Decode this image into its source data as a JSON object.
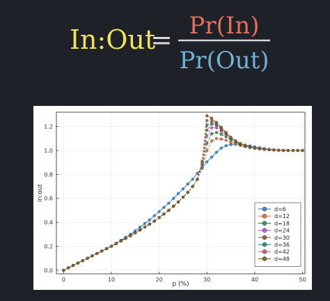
{
  "formula": {
    "lhs": "In:Out",
    "equals": "=",
    "numerator": "Pr(In)",
    "denominator": "Pr(Out)",
    "colors": {
      "lhs": "#f2e25a",
      "numerator": "#e8705a",
      "denominator": "#6fb3d8",
      "rule": "#d8d8d8"
    }
  },
  "chart_data": {
    "type": "line",
    "title": "",
    "xlabel": "p (%)",
    "ylabel": "in:out",
    "xlim": [
      -1.5,
      50.5
    ],
    "ylim": [
      -0.03,
      1.32
    ],
    "xticks": [
      0,
      10,
      20,
      30,
      40,
      50
    ],
    "yticks": [
      0.0,
      0.2,
      0.4,
      0.6,
      0.8,
      1.0,
      1.2
    ],
    "ytick_labels": [
      "0.0",
      "0.2",
      "0.4",
      "0.6",
      "0.8",
      "1.0",
      "1.2"
    ],
    "grid": true,
    "legend_position": "bottom-right",
    "x": [
      0,
      1,
      2,
      3,
      4,
      5,
      6,
      7,
      8,
      9,
      10,
      11,
      12,
      13,
      14,
      15,
      16,
      17,
      18,
      19,
      20,
      21,
      22,
      23,
      24,
      25,
      26,
      27,
      28,
      29,
      30,
      31,
      32,
      33,
      34,
      35,
      36,
      37,
      38,
      39,
      40,
      41,
      42,
      43,
      44,
      45,
      46,
      47,
      48,
      49,
      50
    ],
    "series": [
      {
        "name": "d=6",
        "color": "#3d8fd0",
        "values": [
          0.0,
          0.02,
          0.04,
          0.06,
          0.08,
          0.1,
          0.12,
          0.14,
          0.16,
          0.18,
          0.2,
          0.225,
          0.25,
          0.275,
          0.3,
          0.33,
          0.36,
          0.39,
          0.42,
          0.455,
          0.49,
          0.525,
          0.56,
          0.6,
          0.64,
          0.68,
          0.72,
          0.76,
          0.81,
          0.86,
          0.905,
          0.945,
          0.985,
          1.02,
          1.04,
          1.05,
          1.052,
          1.05,
          1.045,
          1.038,
          1.03,
          1.022,
          1.016,
          1.01,
          1.006,
          1.003,
          1.001,
          1.0,
          1.0,
          1.0,
          1.0
        ]
      },
      {
        "name": "d=12",
        "color": "#e07a3c",
        "values": [
          0.0,
          0.02,
          0.04,
          0.06,
          0.08,
          0.1,
          0.12,
          0.14,
          0.16,
          0.18,
          0.2,
          0.222,
          0.244,
          0.266,
          0.288,
          0.312,
          0.336,
          0.36,
          0.385,
          0.41,
          0.44,
          0.47,
          0.5,
          0.535,
          0.57,
          0.61,
          0.65,
          0.7,
          0.76,
          0.85,
          1.0,
          1.08,
          1.1,
          1.095,
          1.085,
          1.07,
          1.055,
          1.042,
          1.032,
          1.024,
          1.018,
          1.013,
          1.009,
          1.006,
          1.004,
          1.002,
          1.001,
          1.0,
          1.0,
          1.0,
          1.0
        ]
      },
      {
        "name": "d=18",
        "color": "#3a9a4a",
        "values": [
          0.0,
          0.02,
          0.04,
          0.06,
          0.08,
          0.1,
          0.12,
          0.14,
          0.16,
          0.18,
          0.2,
          0.222,
          0.244,
          0.266,
          0.288,
          0.312,
          0.336,
          0.36,
          0.385,
          0.41,
          0.44,
          0.47,
          0.5,
          0.535,
          0.57,
          0.61,
          0.65,
          0.7,
          0.76,
          0.86,
          1.06,
          1.14,
          1.15,
          1.135,
          1.115,
          1.09,
          1.068,
          1.05,
          1.037,
          1.027,
          1.02,
          1.014,
          1.01,
          1.007,
          1.004,
          1.002,
          1.001,
          1.0,
          1.0,
          1.0,
          1.0
        ]
      },
      {
        "name": "d=24",
        "color": "#b06bd6",
        "values": [
          0.0,
          0.02,
          0.04,
          0.06,
          0.08,
          0.1,
          0.12,
          0.14,
          0.16,
          0.18,
          0.2,
          0.222,
          0.244,
          0.266,
          0.288,
          0.312,
          0.336,
          0.36,
          0.385,
          0.41,
          0.44,
          0.47,
          0.5,
          0.535,
          0.57,
          0.61,
          0.65,
          0.7,
          0.76,
          0.87,
          1.12,
          1.19,
          1.19,
          1.16,
          1.13,
          1.1,
          1.075,
          1.055,
          1.04,
          1.029,
          1.021,
          1.015,
          1.01,
          1.007,
          1.004,
          1.002,
          1.001,
          1.0,
          1.0,
          1.0,
          1.0
        ]
      },
      {
        "name": "d=30",
        "color": "#9b6b3a",
        "values": [
          0.0,
          0.02,
          0.04,
          0.06,
          0.08,
          0.1,
          0.12,
          0.14,
          0.16,
          0.18,
          0.2,
          0.222,
          0.244,
          0.266,
          0.288,
          0.312,
          0.336,
          0.36,
          0.385,
          0.41,
          0.44,
          0.47,
          0.5,
          0.535,
          0.57,
          0.61,
          0.65,
          0.7,
          0.76,
          0.88,
          1.17,
          1.22,
          1.21,
          1.175,
          1.14,
          1.105,
          1.078,
          1.057,
          1.041,
          1.03,
          1.021,
          1.015,
          1.01,
          1.007,
          1.004,
          1.002,
          1.001,
          1.0,
          1.0,
          1.0,
          1.0
        ]
      },
      {
        "name": "d=36",
        "color": "#3b8f8c",
        "values": [
          0.0,
          0.02,
          0.04,
          0.06,
          0.08,
          0.1,
          0.12,
          0.14,
          0.16,
          0.18,
          0.2,
          0.222,
          0.244,
          0.266,
          0.288,
          0.312,
          0.336,
          0.36,
          0.385,
          0.41,
          0.44,
          0.47,
          0.5,
          0.535,
          0.57,
          0.61,
          0.65,
          0.7,
          0.76,
          0.89,
          1.21,
          1.24,
          1.22,
          1.185,
          1.145,
          1.108,
          1.08,
          1.058,
          1.042,
          1.03,
          1.021,
          1.015,
          1.01,
          1.007,
          1.004,
          1.002,
          1.001,
          1.0,
          1.0,
          1.0,
          1.0
        ]
      },
      {
        "name": "d=42",
        "color": "#d9607a",
        "values": [
          0.0,
          0.02,
          0.04,
          0.06,
          0.08,
          0.1,
          0.12,
          0.14,
          0.16,
          0.18,
          0.2,
          0.222,
          0.244,
          0.266,
          0.288,
          0.312,
          0.336,
          0.36,
          0.385,
          0.41,
          0.44,
          0.47,
          0.5,
          0.535,
          0.57,
          0.61,
          0.65,
          0.7,
          0.76,
          0.9,
          1.25,
          1.26,
          1.23,
          1.19,
          1.148,
          1.11,
          1.08,
          1.058,
          1.042,
          1.03,
          1.021,
          1.015,
          1.01,
          1.007,
          1.004,
          1.002,
          1.001,
          1.0,
          1.0,
          1.0,
          1.0
        ]
      },
      {
        "name": "d=48",
        "color": "#8a6a2a",
        "values": [
          0.0,
          0.02,
          0.04,
          0.06,
          0.08,
          0.1,
          0.12,
          0.14,
          0.16,
          0.18,
          0.2,
          0.222,
          0.244,
          0.266,
          0.288,
          0.312,
          0.336,
          0.36,
          0.385,
          0.41,
          0.44,
          0.47,
          0.5,
          0.535,
          0.57,
          0.61,
          0.65,
          0.7,
          0.76,
          0.91,
          1.29,
          1.27,
          1.235,
          1.195,
          1.15,
          1.11,
          1.08,
          1.058,
          1.042,
          1.03,
          1.021,
          1.015,
          1.01,
          1.007,
          1.004,
          1.002,
          1.001,
          1.0,
          1.0,
          1.0,
          1.0
        ]
      }
    ]
  }
}
